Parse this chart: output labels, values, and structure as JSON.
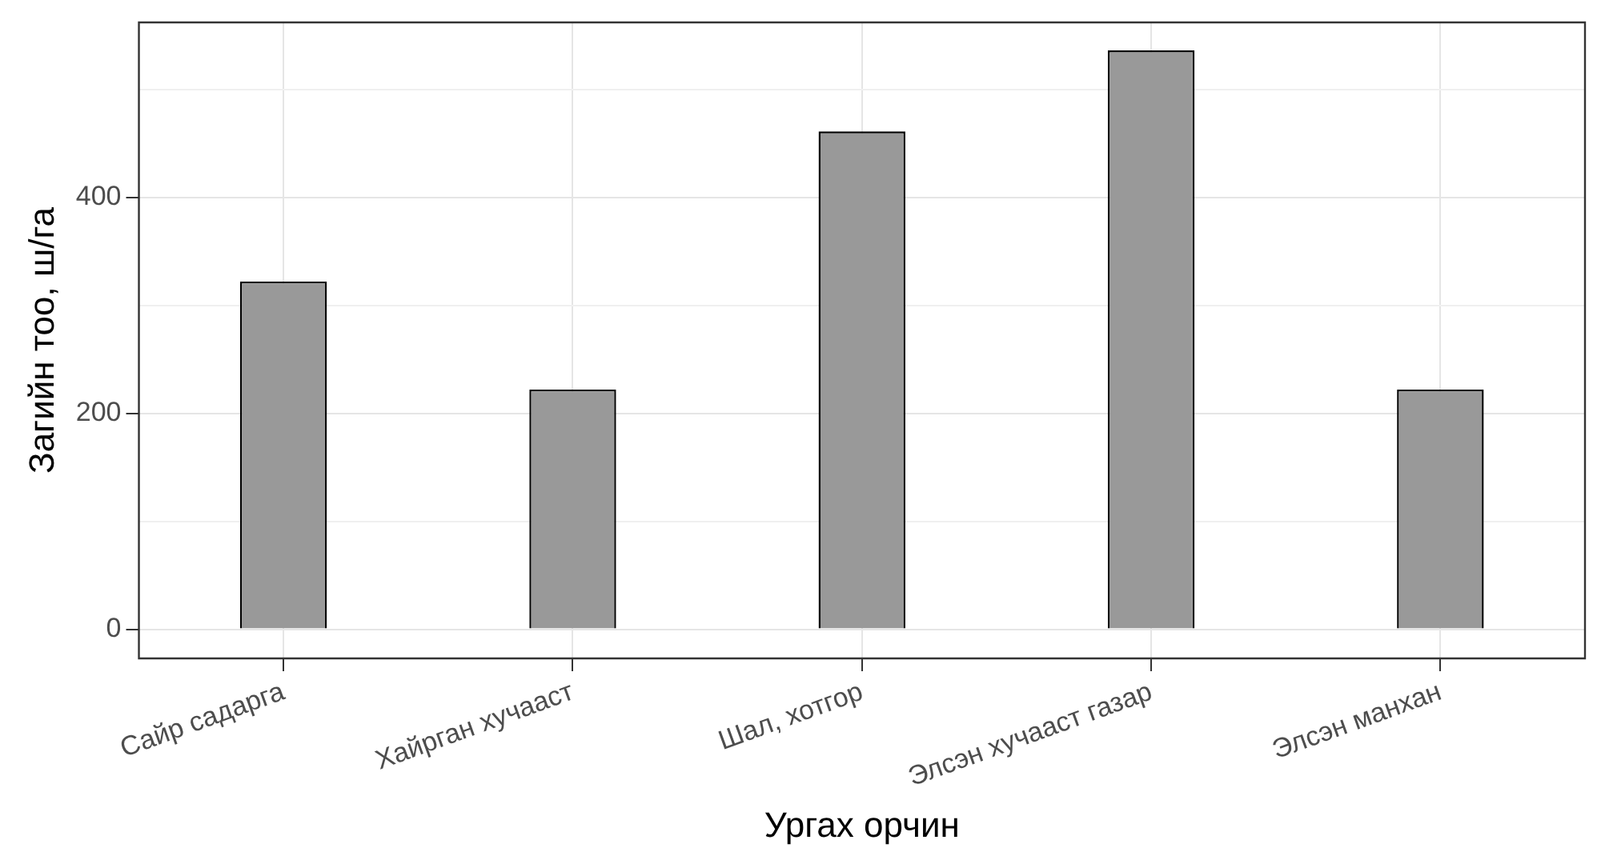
{
  "chart_data": {
    "type": "bar",
    "xlabel": "Ургах орчин",
    "ylabel": "Загийн тоо, ш/га",
    "categories": [
      "Сайр садарга",
      "Хайрган хучааст",
      "Шал, хотгор",
      "Элсэн хучааст газар",
      "Элсэн манхан"
    ],
    "values": [
      322,
      222,
      461,
      536,
      222
    ],
    "color": "#999999",
    "ylim": [
      -27,
      562
    ],
    "yticks": [
      0,
      {
        "value": 100,
        "label": null
      },
      200,
      {
        "value": 300,
        "label": null
      },
      400,
      {
        "value": 500,
        "label": null
      }
    ],
    "grid": true
  }
}
